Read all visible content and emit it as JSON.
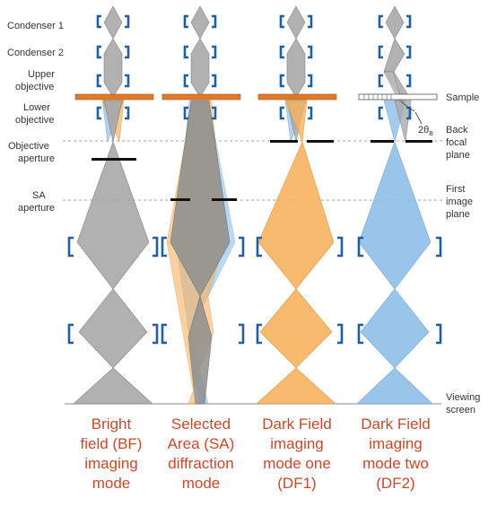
{
  "left_labels": {
    "condenser1": "Condenser 1",
    "condenser2": "Condenser 2",
    "upper_obj_1": "Upper",
    "upper_obj_2": "objective",
    "lower_obj_1": "Lower",
    "lower_obj_2": "objective",
    "obj_ap_1": "Objective",
    "obj_ap_2": "aperture",
    "sa_ap_1": "SA",
    "sa_ap_2": "aperture"
  },
  "right_labels": {
    "sample": "Sample",
    "bfp_1": "Back",
    "bfp_2": "focal",
    "bfp_3": "plane",
    "fip_1": "First",
    "fip_2": "image",
    "fip_3": "plane",
    "vs_1": "Viewing",
    "vs_2": "screen"
  },
  "angle_label": {
    "main": "2θ",
    "sub": "B"
  },
  "captions": {
    "bf": [
      "Bright",
      "field (BF)",
      "imaging",
      "mode"
    ],
    "sa": [
      "Selected",
      "Area (SA)",
      "diffraction",
      "mode"
    ],
    "df1": [
      "Dark Field",
      "imaging",
      "mode one",
      "(DF1)"
    ],
    "df2": [
      "Dark Field",
      "imaging",
      "mode two",
      "(DF2)"
    ]
  },
  "colors": {
    "gray_beam": "#a9a9a9",
    "orange_beam": "#f7b35f",
    "blue_beam": "#8fbfe8",
    "lens": "#1f5fa6",
    "sample": "#e07a2a",
    "aperture": "#111111",
    "caption": "#c8492a"
  }
}
